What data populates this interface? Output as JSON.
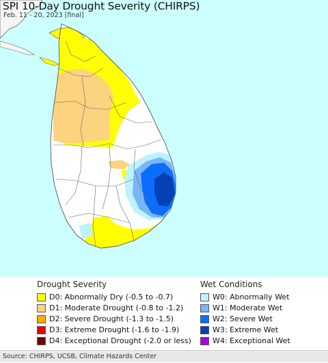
{
  "title": "SPI 10-Day Drought Severity (CHIRPS)",
  "subtitle": "Feb. 11 - 20, 2023 [final]",
  "colors": {
    "ocean": "#ccffff",
    "land": "#ffffff",
    "india": "#f5f5f5",
    "boundary": "#666666"
  },
  "legend": {
    "drought": {
      "heading": "Drought Severity",
      "items": [
        {
          "label": "D0: Abnormally Dry (-0.5 to -0.7)",
          "color": "#ffff00"
        },
        {
          "label": "D1: Moderate Drought (-0.8 to -1.2)",
          "color": "#fcd37f"
        },
        {
          "label": "D2: Severe Drought (-1.3 to -1.5)",
          "color": "#ffaa00"
        },
        {
          "label": "D3: Extreme Drought (-1.6 to -1.9)",
          "color": "#e60000"
        },
        {
          "label": "D4: Exceptional Drought (-2.0 or less)",
          "color": "#730000"
        }
      ]
    },
    "wet": {
      "heading": "Wet Conditions",
      "items": [
        {
          "label": "W0: Abnormally Wet",
          "color": "#bdf2ff"
        },
        {
          "label": "W1: Moderate Wet",
          "color": "#7ab6f5"
        },
        {
          "label": "W2: Severe Wet",
          "color": "#0a6efa"
        },
        {
          "label": "W3: Extreme Wet",
          "color": "#0441b4"
        },
        {
          "label": "W4: Exceptional Wet",
          "color": "#a500e6"
        }
      ]
    }
  },
  "footer": "Source: CHIRPS, UCSB, Climate Hazards Center"
}
